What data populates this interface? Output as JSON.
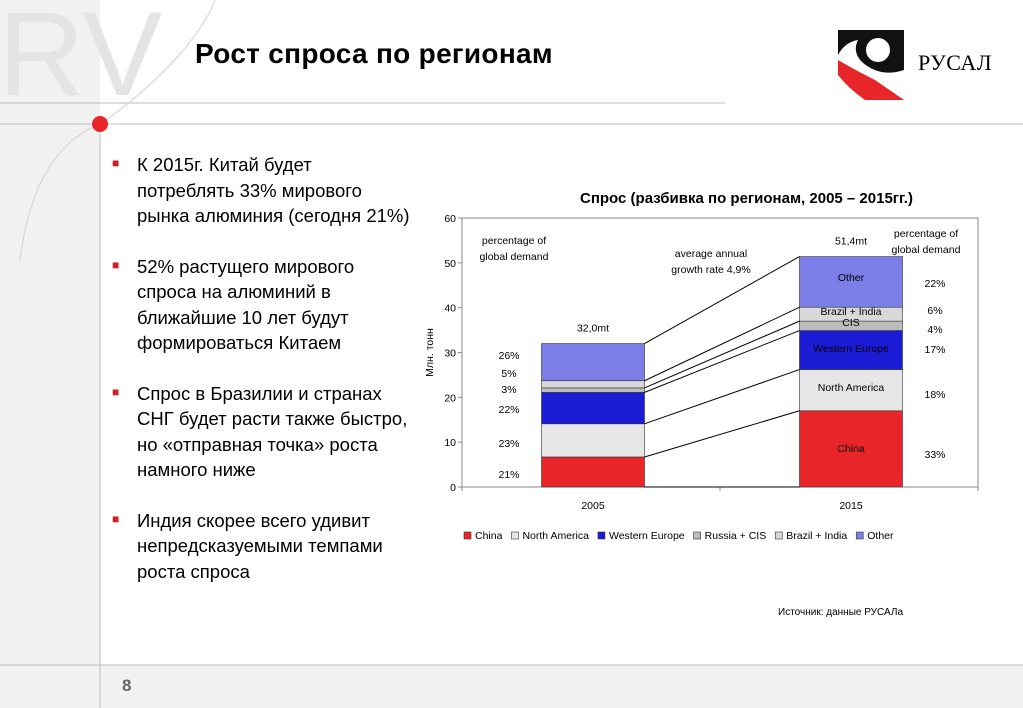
{
  "slide": {
    "title": "Рост спроса по регионам",
    "page_number": "8",
    "watermark": "RV"
  },
  "logo": {
    "text": "РУСАЛ"
  },
  "bullets": [
    "К 2015г. Китай будет потреблять 33% мирового рынка алюминия (сегодня 21%)",
    "52% растущего мирового спроса на алюминий в ближайшие 10 лет будут формироваться Китаем",
    "Спрос в Бразилии и странах СНГ будет расти также быстро, но «отправная точка» роста намного ниже",
    "Индия скорее всего удивит непредсказуемыми темпами роста спроса"
  ],
  "chart_title": "Спрос (разбивка по регионам, 2005 – 2015гг.)",
  "source": "Источник: данные РУСАЛа",
  "colors": {
    "accent_red": "#d21f26",
    "grid": "#c8c8c8"
  },
  "chart_data": {
    "type": "bar",
    "stacked": true,
    "title": "Спрос (разбивка по регионам, 2005 – 2015гг.)",
    "ylabel": "Млн. тонн",
    "ylim": [
      0,
      60
    ],
    "yticks": [
      0,
      10,
      20,
      30,
      40,
      50,
      60
    ],
    "categories": [
      "2005",
      "2015"
    ],
    "totals": [
      "32,0mt",
      "51,4mt"
    ],
    "series": [
      {
        "name": "China",
        "values": [
          6.7,
          17.0
        ],
        "pct": [
          "21%",
          "33%"
        ],
        "color": "#e8262a",
        "inner_label": "China"
      },
      {
        "name": "North America",
        "values": [
          7.4,
          9.2
        ],
        "pct": [
          "23%",
          "18%"
        ],
        "color": "#e6e6e6",
        "inner_label": "North America"
      },
      {
        "name": "Western Europe",
        "values": [
          7.0,
          8.7
        ],
        "pct": [
          "22%",
          "17%"
        ],
        "color": "#1c1cd6",
        "inner_label": "Western Europe"
      },
      {
        "name": "Russia + CIS",
        "values": [
          1.0,
          2.1
        ],
        "pct": [
          "3%",
          "4%"
        ],
        "color": "#bcbcbc",
        "inner_label": "CIS"
      },
      {
        "name": "Brazil + India",
        "values": [
          1.6,
          3.1
        ],
        "pct": [
          "5%",
          "6%"
        ],
        "color": "#d8d8d8",
        "inner_label": "Brazil + India"
      },
      {
        "name": "Other",
        "values": [
          8.3,
          11.3
        ],
        "pct": [
          "26%",
          "22%"
        ],
        "color": "#7b7ee6",
        "inner_label": "Other"
      }
    ],
    "annotations": {
      "left_header": [
        "percentage of",
        "global demand"
      ],
      "right_header": [
        "percentage of",
        "global demand"
      ],
      "growth": [
        "average annual",
        "growth rate 4,9%"
      ]
    },
    "legend_position": "bottom"
  }
}
